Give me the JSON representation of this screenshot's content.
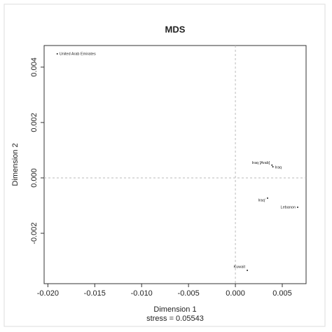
{
  "chart_data": {
    "type": "scatter",
    "title": "MDS",
    "x_label": "Dimension 1",
    "y_label": "Dimension 2",
    "note": "stress = 0.05543",
    "labels": [
      "United Arab Emirates",
      "Iraq [Arab]",
      "Iraq",
      "Iraq'",
      "Lebanon",
      "Kuwait"
    ],
    "x": [
      -0.019,
      0.0039,
      0.004,
      0.00343,
      0.00664,
      0.00127
    ],
    "y": [
      0.00448,
      0.00046,
      0.0004,
      -0.00073,
      -0.00106,
      -0.00334
    ],
    "color": "#222222",
    "xlim": [
      -0.0204,
      0.00754
    ],
    "ylim": [
      -0.00382,
      0.00478
    ],
    "xticks": [
      {
        "value": -0.02,
        "label": "-0.020"
      },
      -0.015,
      {
        "value": -0.01,
        "label": "-0.010"
      },
      -0.005,
      {
        "value": 0,
        "label": "0.000"
      },
      0.005
    ],
    "yticks": [
      -0.002,
      {
        "value": 0,
        "label": "0.000"
      },
      0.002,
      0.004
    ],
    "zero_lines": true
  }
}
